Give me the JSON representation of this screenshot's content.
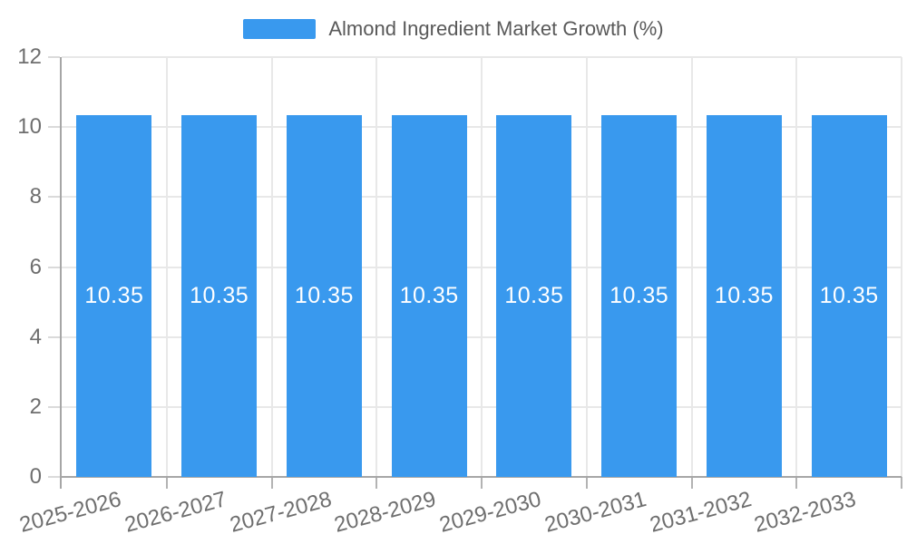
{
  "legend": {
    "label": "Almond Ingredient Market Growth (%)"
  },
  "chart_data": {
    "type": "bar",
    "title": "Almond Ingredient Market Growth (%)",
    "categories": [
      "2025-2026",
      "2026-2027",
      "2027-2028",
      "2028-2029",
      "2029-2030",
      "2030-2031",
      "2031-2032",
      "2032-2033"
    ],
    "values": [
      10.35,
      10.35,
      10.35,
      10.35,
      10.35,
      10.35,
      10.35,
      10.35
    ],
    "value_labels": [
      "10.35",
      "10.35",
      "10.35",
      "10.35",
      "10.35",
      "10.35",
      "10.35",
      "10.35"
    ],
    "xlabel": "",
    "ylabel": "",
    "ylim": [
      0,
      12
    ],
    "yticks": [
      0,
      2,
      4,
      6,
      8,
      10,
      12
    ],
    "ytick_labels": [
      "0",
      "2",
      "4",
      "6",
      "8",
      "10",
      "12"
    ],
    "grid": true,
    "legend_position": "top",
    "x_label_rotation_deg": -15
  },
  "colors": {
    "bar": "#3999ee",
    "bar_label": "#ffffff",
    "grid": "#e8e8e8",
    "axis": "#a6a6a6",
    "tick_y": "#dadada",
    "tick_x": "#b3b3b3",
    "tick_text": "#6e6e6e",
    "title_text": "#595959",
    "background": "#ffffff"
  }
}
